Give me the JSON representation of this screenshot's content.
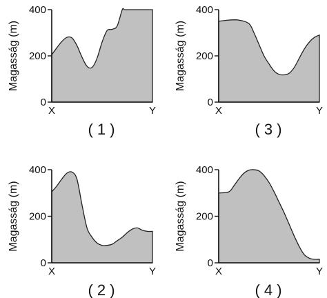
{
  "chart_data": [
    {
      "type": "area",
      "caption": "( 1 )",
      "ylabel": "Magasság  (m)",
      "x_start_label": "X",
      "x_end_label": "Y",
      "ylim": [
        0,
        400
      ],
      "yticks": [
        "0",
        "200",
        "400"
      ],
      "xlim": [
        0,
        1
      ],
      "x": [
        0,
        0.05,
        0.1,
        0.15,
        0.2,
        0.25,
        0.3,
        0.35,
        0.4,
        0.45,
        0.5,
        0.55,
        0.6,
        0.65,
        0.7,
        0.72,
        0.75,
        0.8,
        0.85,
        0.9,
        1.0
      ],
      "y": [
        205,
        235,
        262,
        280,
        278,
        245,
        195,
        155,
        150,
        190,
        260,
        310,
        315,
        330,
        400,
        400,
        400,
        400,
        400,
        400,
        400
      ],
      "fill": "#c0c0c0"
    },
    {
      "type": "area",
      "caption": "( 3 )",
      "ylabel": "Magasság  (m)",
      "x_start_label": "X",
      "x_end_label": "Y",
      "ylim": [
        0,
        400
      ],
      "yticks": [
        "0",
        "200",
        "400"
      ],
      "xlim": [
        0,
        1
      ],
      "x": [
        0,
        0.1,
        0.2,
        0.3,
        0.35,
        0.4,
        0.45,
        0.5,
        0.55,
        0.6,
        0.65,
        0.7,
        0.75,
        0.8,
        0.85,
        0.9,
        0.95,
        1.0
      ],
      "y": [
        350,
        355,
        355,
        340,
        300,
        250,
        200,
        165,
        135,
        120,
        118,
        125,
        150,
        190,
        230,
        260,
        280,
        290
      ],
      "fill": "#c0c0c0"
    },
    {
      "type": "area",
      "caption": "( 2 )",
      "ylabel": "Magasság  (m)",
      "x_start_label": "X",
      "x_end_label": "Y",
      "ylim": [
        0,
        400
      ],
      "yticks": [
        "0",
        "200",
        "400"
      ],
      "xlim": [
        0,
        1
      ],
      "x": [
        0,
        0.05,
        0.1,
        0.15,
        0.2,
        0.25,
        0.3,
        0.35,
        0.4,
        0.45,
        0.5,
        0.55,
        0.6,
        0.65,
        0.7,
        0.75,
        0.8,
        0.85,
        0.9,
        0.95,
        1.0
      ],
      "y": [
        305,
        330,
        360,
        385,
        390,
        360,
        250,
        150,
        110,
        85,
        75,
        75,
        80,
        95,
        110,
        130,
        145,
        150,
        140,
        135,
        135
      ],
      "fill": "#c0c0c0"
    },
    {
      "type": "area",
      "caption": "( 4 )",
      "ylabel": "Magasság  (m)",
      "x_start_label": "X",
      "x_end_label": "Y",
      "ylim": [
        0,
        400
      ],
      "yticks": [
        "0",
        "200",
        "400"
      ],
      "xlim": [
        0,
        1
      ],
      "x": [
        0,
        0.1,
        0.15,
        0.2,
        0.25,
        0.3,
        0.35,
        0.4,
        0.45,
        0.5,
        0.55,
        0.6,
        0.65,
        0.7,
        0.75,
        0.8,
        0.85,
        0.9,
        0.95,
        1.0
      ],
      "y": [
        300,
        305,
        330,
        360,
        385,
        398,
        400,
        395,
        375,
        345,
        305,
        260,
        215,
        165,
        115,
        70,
        35,
        20,
        15,
        15
      ],
      "fill": "#c0c0c0"
    }
  ]
}
